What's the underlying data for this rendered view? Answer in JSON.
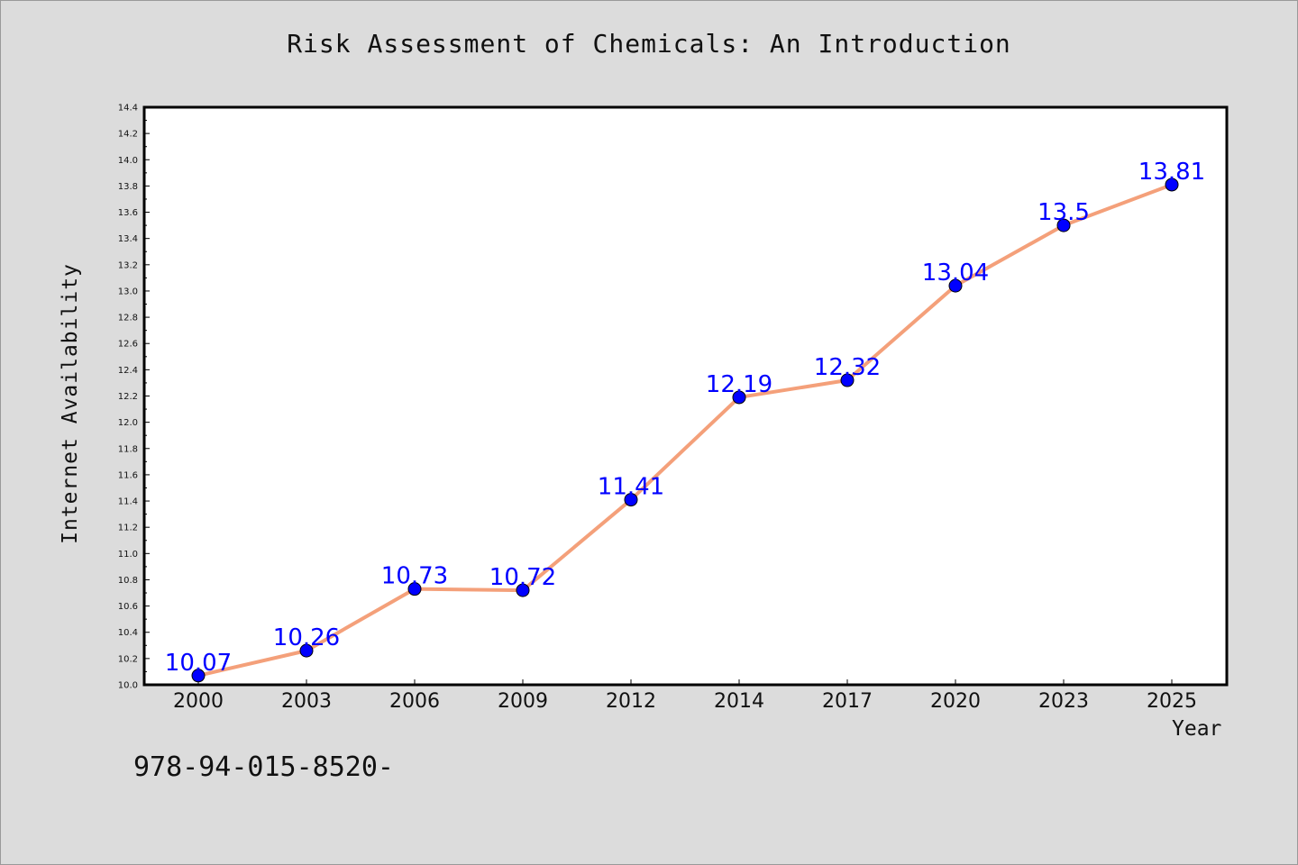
{
  "chart_data": {
    "type": "line",
    "title": "Risk Assessment of Chemicals: An Introduction",
    "xlabel": "Year",
    "ylabel": "Internet Availability",
    "categories": [
      "2000",
      "2003",
      "2006",
      "2009",
      "2012",
      "2014",
      "2017",
      "2020",
      "2023",
      "2025"
    ],
    "series": [
      {
        "values": [
          10.07,
          10.26,
          10.73,
          10.72,
          11.41,
          12.19,
          12.32,
          13.04,
          13.5,
          13.81
        ],
        "labels": [
          "10.07",
          "10.26",
          "10.73",
          "10.72",
          "11.41",
          "12.19",
          "12.32",
          "13.04",
          "13.5",
          "13.81"
        ]
      }
    ],
    "ylim": [
      10.0,
      14.4
    ],
    "yticks": [
      "10.0",
      "10.2",
      "10.4",
      "10.6",
      "10.8",
      "11.0",
      "11.2",
      "11.4",
      "11.6",
      "11.8",
      "12.0",
      "12.2",
      "12.4",
      "12.6",
      "12.8",
      "13.0",
      "13.2",
      "13.4",
      "13.6",
      "13.8",
      "14.0",
      "14.2",
      "14.4"
    ],
    "grid": false,
    "line_color": "#f4a07a",
    "marker_color": "#0000ff",
    "label_color": "#0000ff",
    "plot_background": "#ffffff",
    "page_background": "#dcdcdc"
  },
  "footnote": "978-94-015-8520-"
}
